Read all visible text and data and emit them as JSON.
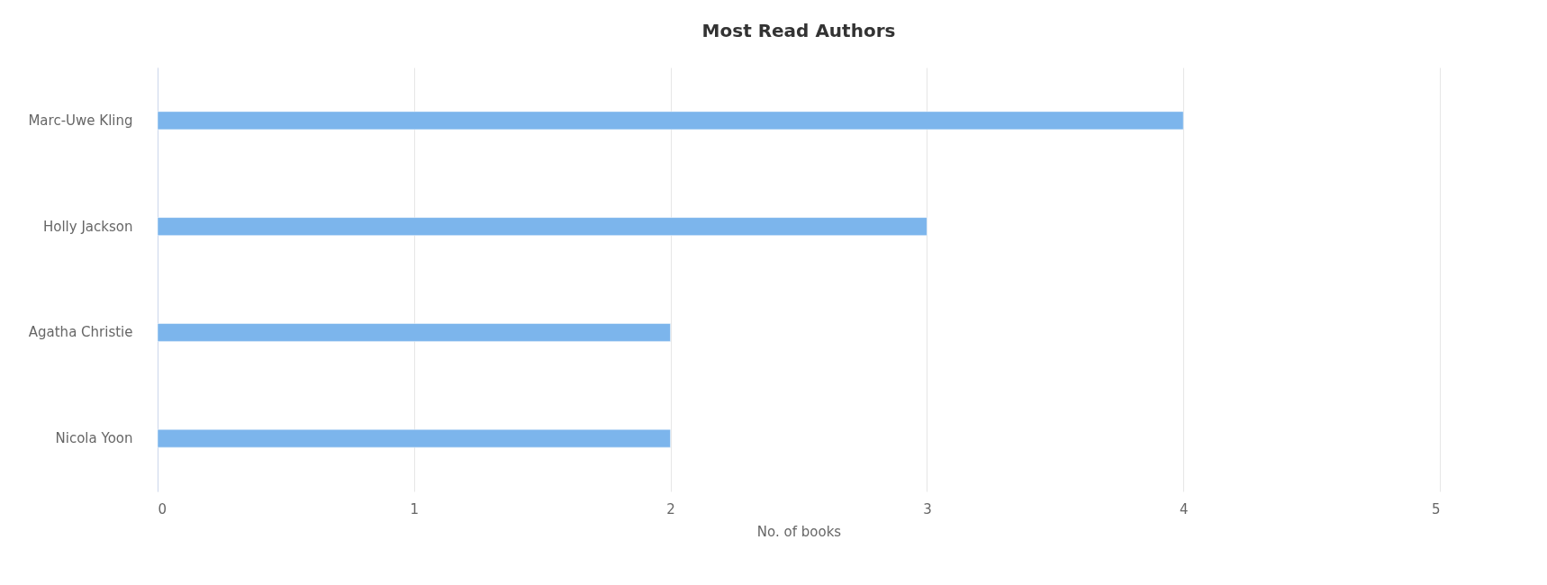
{
  "chart_data": {
    "type": "bar",
    "orientation": "horizontal",
    "title": "Most Read Authors",
    "xlabel": "No. of books",
    "categories": [
      "Marc-Uwe Kling",
      "Holly Jackson",
      "Agatha Christie",
      "Nicola Yoon"
    ],
    "values": [
      4,
      3,
      2,
      2
    ],
    "color": "#7cb5ec",
    "xlim": [
      0,
      5
    ],
    "xticks": [
      0,
      1,
      2,
      3,
      4,
      5
    ],
    "grid": "x"
  }
}
